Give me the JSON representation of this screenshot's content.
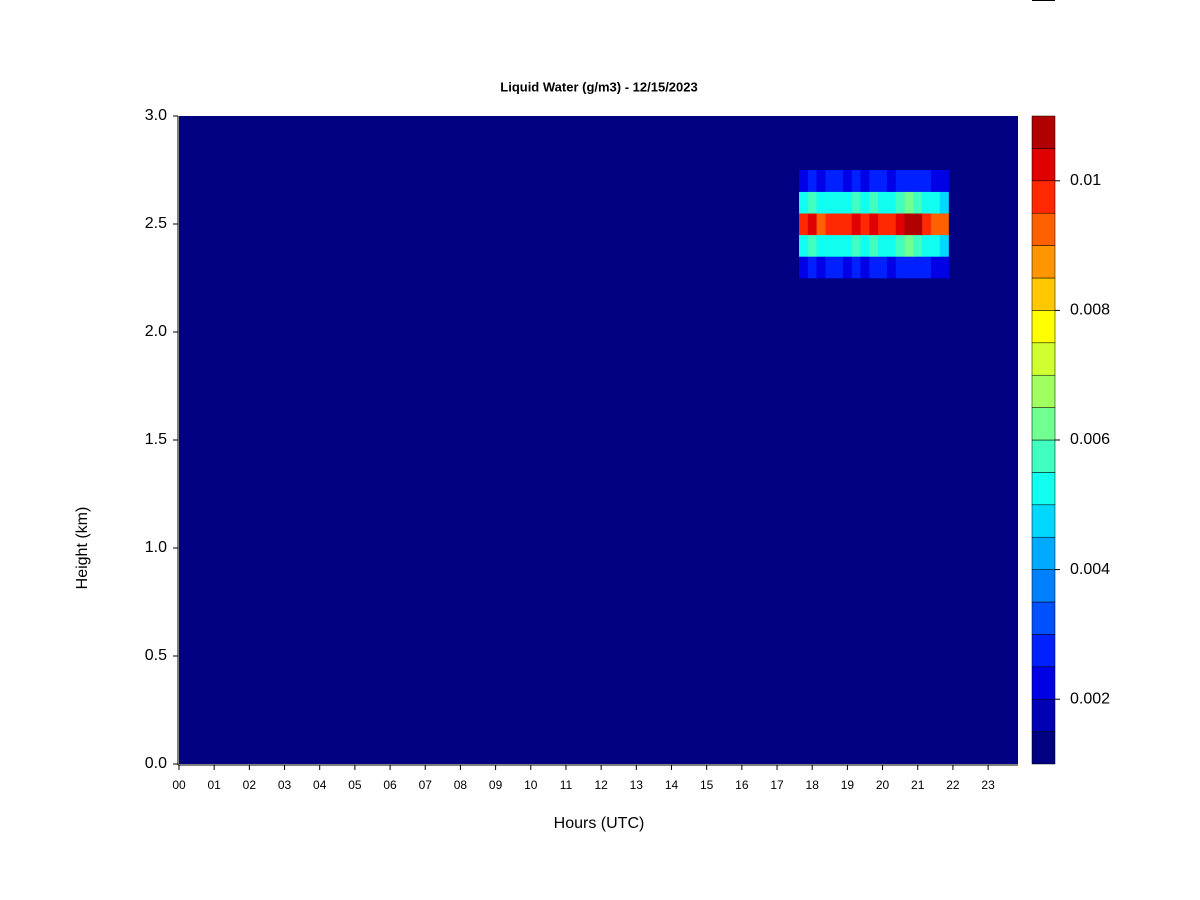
{
  "chart_data": {
    "type": "heatmap",
    "title": "Liquid Water (g/m3) - 12/15/2023",
    "x_label": "Hours (UTC)",
    "y_label": "Height (km)",
    "xlim": [
      0,
      23.85
    ],
    "ylim": [
      0,
      3.0
    ],
    "xticks": [
      {
        "value": 0,
        "label": "00"
      },
      {
        "value": 1,
        "label": "01"
      },
      {
        "value": 2,
        "label": "02"
      },
      {
        "value": 3,
        "label": "03"
      },
      {
        "value": 4,
        "label": "04"
      },
      {
        "value": 5,
        "label": "05"
      },
      {
        "value": 6,
        "label": "06"
      },
      {
        "value": 7,
        "label": "07"
      },
      {
        "value": 8,
        "label": "08"
      },
      {
        "value": 9,
        "label": "09"
      },
      10,
      11,
      12,
      13,
      14,
      15,
      16,
      17,
      18,
      19,
      20,
      21,
      22,
      23
    ],
    "yticks": [
      {
        "value": 0,
        "label": "0.0"
      },
      0.5,
      {
        "value": 1,
        "label": "1.0"
      },
      1.5,
      {
        "value": 2,
        "label": "2.0"
      },
      2.5,
      {
        "value": 3,
        "label": "3.0"
      }
    ],
    "levels": [
      0.001,
      0.0015,
      0.002,
      0.0025,
      0.003,
      0.0035,
      0.004,
      0.0045,
      0.005,
      0.0055,
      0.006,
      0.0065,
      0.007,
      0.0075,
      0.008,
      0.0085,
      0.009,
      0.0095,
      0.01,
      0.0105,
      0.011
    ],
    "colors": [
      "#000080",
      "#0000B4",
      "#0000E6",
      "#0020FF",
      "#0050FF",
      "#0080FF",
      "#00AAFF",
      "#00D8FF",
      "#10FFF0",
      "#40FFC0",
      "#70FF90",
      "#A0FF60",
      "#D0FF30",
      "#FFFF00",
      "#FFC800",
      "#FF9600",
      "#FF6000",
      "#FF2800",
      "#E00000",
      "#B00000"
    ],
    "colorbar_ticks": [
      0.002,
      0.004,
      0.006,
      0.008,
      0.01
    ],
    "x": [
      17.75,
      18,
      18.25,
      18.5,
      18.75,
      19,
      19.25,
      19.5,
      19.75,
      20,
      20.25,
      20.5,
      20.75,
      21,
      21.25,
      21.5,
      21.75
    ],
    "y": [
      2.3,
      2.4,
      2.5,
      2.6,
      2.7
    ],
    "z": [
      [
        0.0024,
        0.0026,
        0.0022,
        0.0025,
        0.0025,
        0.0024,
        0.0026,
        0.0024,
        0.0027,
        0.0025,
        0.0024,
        0.0027,
        0.0029,
        0.0028,
        0.0025,
        0.0023,
        0.0021
      ],
      [
        0.0052,
        0.0055,
        0.005,
        0.0054,
        0.0054,
        0.0053,
        0.0055,
        0.0053,
        0.0056,
        0.0054,
        0.0053,
        0.0057,
        0.006,
        0.0058,
        0.0054,
        0.0052,
        0.0049
      ],
      [
        0.0095,
        0.01,
        0.0092,
        0.0098,
        0.0099,
        0.0096,
        0.01,
        0.0097,
        0.0102,
        0.0098,
        0.0096,
        0.0103,
        0.0108,
        0.0106,
        0.0098,
        0.0094,
        0.009
      ],
      [
        0.0052,
        0.0055,
        0.005,
        0.0054,
        0.0054,
        0.0053,
        0.0055,
        0.0053,
        0.0056,
        0.0054,
        0.0053,
        0.0057,
        0.006,
        0.0058,
        0.0054,
        0.0052,
        0.0049
      ],
      [
        0.0024,
        0.0026,
        0.0022,
        0.0025,
        0.0025,
        0.0024,
        0.0026,
        0.0024,
        0.0027,
        0.0025,
        0.0024,
        0.0027,
        0.0029,
        0.0028,
        0.0025,
        0.0023,
        0.0021
      ]
    ]
  }
}
